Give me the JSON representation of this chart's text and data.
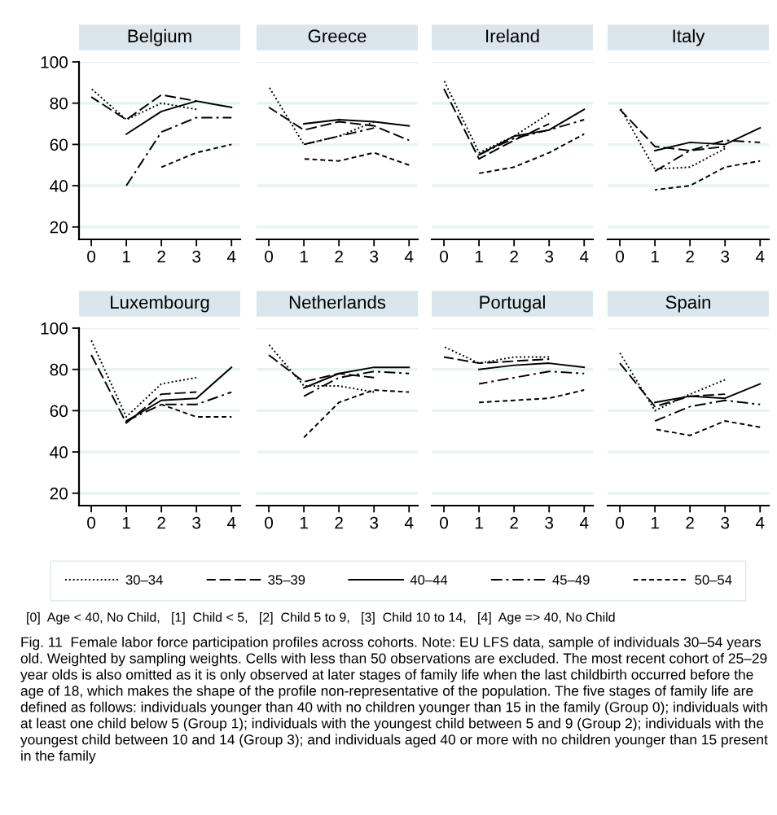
{
  "chart_data": [
    {
      "type": "line",
      "title": "Belgium",
      "x": [
        0,
        1,
        2,
        3,
        4
      ],
      "xlim": [
        -0.35,
        4.25
      ],
      "xticks": [
        0,
        1,
        2,
        3,
        4
      ],
      "ylim": [
        14,
        100
      ],
      "yticks": [
        20,
        40,
        60,
        80,
        100
      ],
      "grid": "y",
      "legend": "bottom",
      "series": [
        {
          "name": "30–34",
          "color": "#000000",
          "line_style": "dotted",
          "values": [
            87,
            72,
            80,
            77,
            null
          ]
        },
        {
          "name": "35–39",
          "color": "#000000",
          "line_style": "longdash",
          "values": [
            83,
            72,
            84,
            81,
            null
          ]
        },
        {
          "name": "40–44",
          "color": "#000000",
          "line_style": "solid",
          "values": [
            null,
            65,
            76,
            81,
            78
          ]
        },
        {
          "name": "45–49",
          "color": "#000000",
          "line_style": "dashdot",
          "values": [
            null,
            40,
            66,
            73,
            73
          ]
        },
        {
          "name": "50–54",
          "color": "#000000",
          "line_style": "dashed",
          "values": [
            null,
            null,
            49,
            56,
            60
          ]
        }
      ]
    },
    {
      "type": "line",
      "title": "Greece",
      "x": [
        0,
        1,
        2,
        3,
        4
      ],
      "xlim": [
        -0.35,
        4.25
      ],
      "xticks": [
        0,
        1,
        2,
        3,
        4
      ],
      "ylim": [
        14,
        100
      ],
      "tick_labels": "x",
      "grid": "y",
      "series": [
        {
          "color": "#000000",
          "line_style": "dotted",
          "values": [
            88,
            60,
            64,
            71,
            null
          ]
        },
        {
          "color": "#000000",
          "line_style": "longdash",
          "values": [
            78,
            67,
            71,
            69,
            62
          ]
        },
        {
          "color": "#000000",
          "line_style": "solid",
          "values": [
            null,
            70,
            72,
            71,
            69
          ]
        },
        {
          "color": "#000000",
          "line_style": "dashdot",
          "values": [
            null,
            60,
            64,
            68,
            null
          ]
        },
        {
          "color": "#000000",
          "line_style": "dashed",
          "values": [
            null,
            53,
            52,
            56,
            50
          ]
        }
      ]
    },
    {
      "type": "line",
      "title": "Ireland",
      "x": [
        0,
        1,
        2,
        3,
        4
      ],
      "xlim": [
        -0.35,
        4.25
      ],
      "xticks": [
        0,
        1,
        2,
        3,
        4
      ],
      "ylim": [
        14,
        100
      ],
      "tick_labels": "x",
      "grid": "y",
      "series": [
        {
          "color": "#000000",
          "line_style": "dotted",
          "values": [
            91,
            56,
            64,
            75,
            null
          ]
        },
        {
          "color": "#000000",
          "line_style": "longdash",
          "values": [
            87,
            53,
            62,
            70,
            null
          ]
        },
        {
          "color": "#000000",
          "line_style": "solid",
          "values": [
            null,
            55,
            64,
            67,
            77
          ]
        },
        {
          "color": "#000000",
          "line_style": "dashdot",
          "values": [
            null,
            55,
            63,
            67,
            72
          ]
        },
        {
          "color": "#000000",
          "line_style": "dashed",
          "values": [
            null,
            46,
            49,
            56,
            65
          ]
        }
      ]
    },
    {
      "type": "line",
      "title": "Italy",
      "x": [
        0,
        1,
        2,
        3,
        4
      ],
      "xlim": [
        -0.35,
        4.25
      ],
      "xticks": [
        0,
        1,
        2,
        3,
        4
      ],
      "ylim": [
        14,
        100
      ],
      "tick_labels": "x",
      "grid": "y",
      "series": [
        {
          "color": "#000000",
          "line_style": "dotted",
          "values": [
            78,
            48,
            49,
            58,
            null
          ]
        },
        {
          "color": "#000000",
          "line_style": "longdash",
          "values": [
            77,
            59,
            57,
            59,
            null
          ]
        },
        {
          "color": "#000000",
          "line_style": "solid",
          "values": [
            null,
            57,
            61,
            60,
            68
          ]
        },
        {
          "color": "#000000",
          "line_style": "dashdot",
          "values": [
            null,
            47,
            57,
            62,
            61
          ]
        },
        {
          "color": "#000000",
          "line_style": "dashed",
          "values": [
            null,
            38,
            40,
            49,
            52
          ]
        }
      ]
    },
    {
      "type": "line",
      "title": "Luxembourg",
      "x": [
        0,
        1,
        2,
        3,
        4
      ],
      "xlim": [
        -0.35,
        4.25
      ],
      "xticks": [
        0,
        1,
        2,
        3,
        4
      ],
      "ylim": [
        14,
        100
      ],
      "yticks": [
        20,
        40,
        60,
        80,
        100
      ],
      "grid": "y",
      "series": [
        {
          "color": "#000000",
          "line_style": "dotted",
          "values": [
            94,
            57,
            73,
            76,
            null
          ]
        },
        {
          "color": "#000000",
          "line_style": "longdash",
          "values": [
            87,
            54,
            68,
            69,
            null
          ]
        },
        {
          "color": "#000000",
          "line_style": "solid",
          "values": [
            null,
            55,
            65,
            66,
            81
          ]
        },
        {
          "color": "#000000",
          "line_style": "dashdot",
          "values": [
            null,
            55,
            63,
            63,
            69
          ]
        },
        {
          "color": "#000000",
          "line_style": "dashed",
          "values": [
            null,
            null,
            63,
            57,
            57
          ]
        }
      ]
    },
    {
      "type": "line",
      "title": "Netherlands",
      "x": [
        0,
        1,
        2,
        3,
        4
      ],
      "xlim": [
        -0.35,
        4.25
      ],
      "xticks": [
        0,
        1,
        2,
        3,
        4
      ],
      "ylim": [
        14,
        100
      ],
      "tick_labels": "x",
      "grid": "y",
      "series": [
        {
          "color": "#000000",
          "line_style": "dotted",
          "values": [
            92,
            72,
            72,
            69,
            null
          ]
        },
        {
          "color": "#000000",
          "line_style": "longdash",
          "values": [
            87,
            74,
            78,
            76,
            null
          ]
        },
        {
          "color": "#000000",
          "line_style": "solid",
          "values": [
            null,
            71,
            78,
            81,
            81
          ]
        },
        {
          "color": "#000000",
          "line_style": "dashdot",
          "values": [
            null,
            67,
            76,
            79,
            78
          ]
        },
        {
          "color": "#000000",
          "line_style": "dashed",
          "values": [
            null,
            47,
            64,
            70,
            69
          ]
        }
      ]
    },
    {
      "type": "line",
      "title": "Portugal",
      "x": [
        0,
        1,
        2,
        3,
        4
      ],
      "xlim": [
        -0.35,
        4.25
      ],
      "xticks": [
        0,
        1,
        2,
        3,
        4
      ],
      "ylim": [
        14,
        100
      ],
      "tick_labels": "x",
      "grid": "y",
      "series": [
        {
          "color": "#000000",
          "line_style": "dotted",
          "values": [
            91,
            83,
            86,
            86,
            null
          ]
        },
        {
          "color": "#000000",
          "line_style": "longdash",
          "values": [
            86,
            83,
            84,
            85,
            null
          ]
        },
        {
          "color": "#000000",
          "line_style": "solid",
          "values": [
            null,
            80,
            82,
            83,
            81
          ]
        },
        {
          "color": "#000000",
          "line_style": "dashdot",
          "values": [
            null,
            73,
            76,
            79,
            78
          ]
        },
        {
          "color": "#000000",
          "line_style": "dashed",
          "values": [
            null,
            64,
            65,
            66,
            70
          ]
        }
      ]
    },
    {
      "type": "line",
      "title": "Spain",
      "x": [
        0,
        1,
        2,
        3,
        4
      ],
      "xlim": [
        -0.35,
        4.25
      ],
      "xticks": [
        0,
        1,
        2,
        3,
        4
      ],
      "ylim": [
        14,
        100
      ],
      "tick_labels": "x",
      "grid": "y",
      "series": [
        {
          "color": "#000000",
          "line_style": "dotted",
          "values": [
            88,
            60,
            68,
            75,
            null
          ]
        },
        {
          "color": "#000000",
          "line_style": "longdash",
          "values": [
            83,
            62,
            67,
            68,
            null
          ]
        },
        {
          "color": "#000000",
          "line_style": "solid",
          "values": [
            null,
            64,
            67,
            66,
            73
          ]
        },
        {
          "color": "#000000",
          "line_style": "dashdot",
          "values": [
            null,
            55,
            62,
            65,
            63
          ]
        },
        {
          "color": "#000000",
          "line_style": "dashed",
          "values": [
            null,
            51,
            48,
            55,
            52
          ]
        }
      ],
      "annotations": [
        "[0]  Age < 40, No Child,   [1]  Child < 5,   [2]  Child 5 to 9,   [3]  Child 10 to 14,   [4]  Age => 40, No Child",
        "Fig. 11  Female labor force participation profiles across cohorts. Note: EU LFS data, sample of individuals 30–54 years old. Weighted by sampling weights. Cells with less than 50 observations are excluded. The most recent cohort of 25–29 year olds is also omitted as it is only observed at later stages of family life when the last childbirth occurred before the age of 18, which makes the shape of the profile non-representative of the population. The five stages of family life are defined as follows: individuals younger than 40 with no children younger than 15 in the family (Group 0); individuals with at least one child below 5 (Group 1); individuals with the youngest child between 5 and 9 (Group 2); individuals with the youngest child between 10 and 14 (Group 3); and individuals aged 40 or more with no children younger than 15 present in the family"
      ]
    }
  ]
}
